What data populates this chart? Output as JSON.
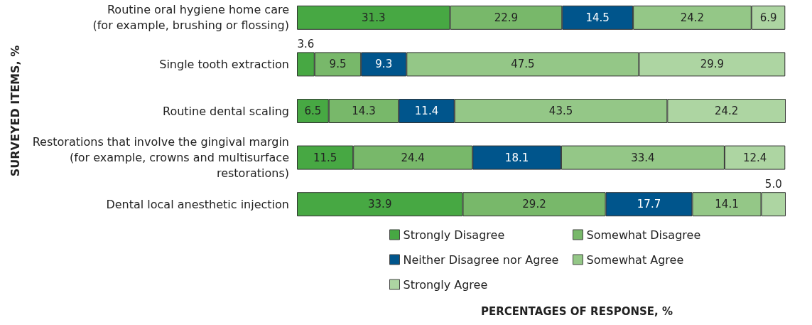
{
  "chart_data": {
    "type": "bar",
    "orientation": "horizontal",
    "stacked": true,
    "ylabel": "SURVEYED ITEMS, %",
    "categories": [
      "Routine oral hygiene home care\n(for example, brushing or flossing)",
      "Single tooth extraction",
      "Routine dental scaling",
      "Restorations that involve the gingival margin\n(for example, crowns and multisurface\nrestorations)",
      "Dental local anesthetic injection"
    ],
    "series": [
      {
        "name": "Strongly Disagree",
        "color": "#47a843",
        "values": [
          31.3,
          3.6,
          6.5,
          11.5,
          33.9
        ],
        "value_labels": [
          "31.3",
          "3.6",
          "6.5",
          "11.5",
          "33.9"
        ]
      },
      {
        "name": "Somewhat Disagree",
        "color": "#78b86a",
        "values": [
          22.9,
          9.5,
          14.3,
          24.4,
          29.2
        ],
        "value_labels": [
          "22.9",
          "9.5",
          "14.3",
          "24.4",
          "29.2"
        ]
      },
      {
        "name": "Neither Disagree nor Agree",
        "color": "#00558c",
        "values": [
          14.5,
          9.3,
          11.4,
          18.1,
          17.7
        ],
        "value_labels": [
          "14.5",
          "9.3",
          "11.4",
          "18.1",
          "17.7"
        ]
      },
      {
        "name": "Somewhat Agree",
        "color": "#94c787",
        "values": [
          24.2,
          47.5,
          43.5,
          33.4,
          14.1
        ],
        "value_labels": [
          "24.2",
          "47.5",
          "43.5",
          "33.4",
          "14.1"
        ]
      },
      {
        "name": "Strongly Agree",
        "color": "#add5a2",
        "values": [
          6.9,
          29.9,
          24.2,
          12.4,
          5.0
        ],
        "value_labels": [
          "6.9",
          "29.9",
          "24.2",
          "12.4",
          "5.0"
        ]
      }
    ],
    "annotations": [
      "PERCENTAGES OF RESPONSE, %"
    ],
    "legend": "bottom",
    "tick_labels": "y"
  }
}
